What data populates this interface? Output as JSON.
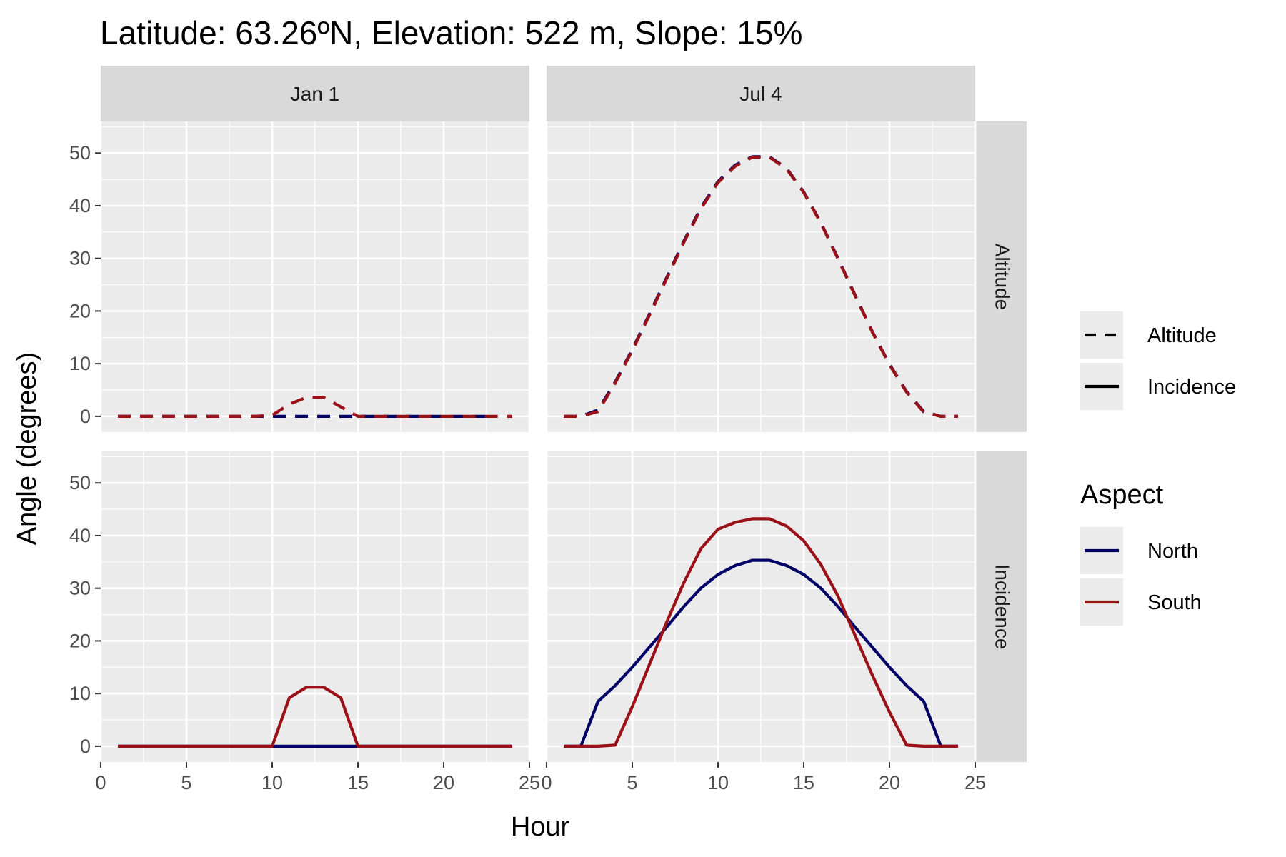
{
  "chart_data": {
    "type": "line",
    "title": "Latitude: 63.26ºN, Elevation: 522 m, Slope: 15%",
    "xlabel": "Hour",
    "ylabel": "Angle (degrees)",
    "xlim": [
      0,
      25
    ],
    "ylim": [
      0,
      50
    ],
    "x_ticks": [
      0,
      5,
      10,
      15,
      20,
      25
    ],
    "y_ticks": [
      0,
      10,
      20,
      30,
      40,
      50
    ],
    "x_tick_labels": [
      "0",
      "5",
      "10",
      "15",
      "20",
      "25"
    ],
    "x_tick_labels_right": [
      "0",
      "5",
      "10",
      "15",
      "20",
      "25"
    ],
    "y_tick_labels": [
      "0",
      "10",
      "20",
      "30",
      "40",
      "50"
    ],
    "grid": true,
    "columns": [
      "Jan 1",
      "Jul 4"
    ],
    "rows": [
      "Altitude",
      "Incidence"
    ],
    "legend": {
      "position": "right",
      "linetype_title": "",
      "linetypes": [
        {
          "label": "Altitude",
          "dash": "dashed"
        },
        {
          "label": "Incidence",
          "dash": "solid"
        }
      ],
      "color_title": "Aspect",
      "colors": [
        {
          "label": "North",
          "color": "#000066"
        },
        {
          "label": "South",
          "color": "#9b1118"
        }
      ]
    },
    "panels": [
      {
        "column": "Jan 1",
        "row": "Altitude",
        "series": [
          {
            "name": "North",
            "color": "#000066",
            "linetype": "dashed",
            "x": [
              1,
              2,
              3,
              4,
              5,
              6,
              7,
              8,
              9,
              10,
              11,
              12,
              13,
              14,
              15,
              16,
              17,
              18,
              19,
              20,
              21,
              22,
              23
            ],
            "y": [
              0,
              0,
              0,
              0,
              0,
              0,
              0,
              0,
              0,
              0,
              0,
              0,
              0,
              0,
              0,
              0,
              0,
              0,
              0,
              0,
              0,
              0,
              0
            ]
          },
          {
            "name": "South",
            "color": "#9b1118",
            "linetype": "dashed",
            "x": [
              1,
              2,
              3,
              4,
              5,
              6,
              7,
              8,
              9,
              10,
              11,
              12,
              13,
              14,
              15,
              16,
              17,
              18,
              19,
              20,
              21,
              22,
              23,
              24
            ],
            "y": [
              0,
              0,
              0,
              0,
              0,
              0,
              0,
              0,
              0,
              0.2,
              2.3,
              3.6,
              3.6,
              1.8,
              0,
              0,
              0,
              0,
              0,
              0,
              0,
              0,
              0,
              0
            ]
          }
        ]
      },
      {
        "column": "Jul 4",
        "row": "Altitude",
        "series": [
          {
            "name": "North",
            "color": "#000066",
            "linetype": "dashed",
            "x": [
              1,
              2,
              3,
              4,
              5,
              6,
              7,
              8,
              9,
              10,
              11,
              12,
              13,
              14,
              15,
              16,
              17,
              18,
              19,
              20,
              21,
              22,
              23,
              24
            ],
            "y": [
              0,
              0,
              1.2,
              6.5,
              12.7,
              19.4,
              26.3,
              33.2,
              39.6,
              44.6,
              47.7,
              49.3,
              49.3,
              47.1,
              42.6,
              36.8,
              30.0,
              23.0,
              16.1,
              9.9,
              4.7,
              0.9,
              0,
              0
            ]
          },
          {
            "name": "South",
            "color": "#9b1118",
            "linetype": "dashed",
            "x": [
              1,
              2,
              3,
              4,
              5,
              6,
              7,
              8,
              9,
              10,
              11,
              12,
              13,
              14,
              15,
              16,
              17,
              18,
              19,
              20,
              21,
              22,
              23,
              24
            ],
            "y": [
              0,
              0,
              0.9,
              6.3,
              12.5,
              19.2,
              26.1,
              33.0,
              39.4,
              44.4,
              47.5,
              49.2,
              49.2,
              47.0,
              42.5,
              36.7,
              29.9,
              22.9,
              16.0,
              9.8,
              4.6,
              0.8,
              0,
              0
            ]
          }
        ]
      },
      {
        "column": "Jan 1",
        "row": "Incidence",
        "series": [
          {
            "name": "North",
            "color": "#000066",
            "linetype": "solid",
            "x": [
              1,
              2,
              3,
              4,
              5,
              6,
              7,
              8,
              9,
              10,
              11,
              12,
              13,
              14,
              15,
              16,
              17,
              18,
              19,
              20,
              21,
              22,
              23,
              24
            ],
            "y": [
              0,
              0,
              0,
              0,
              0,
              0,
              0,
              0,
              0,
              0,
              0,
              0,
              0,
              0,
              0,
              0,
              0,
              0,
              0,
              0,
              0,
              0,
              0,
              0
            ]
          },
          {
            "name": "South",
            "color": "#9b1118",
            "linetype": "solid",
            "x": [
              1,
              2,
              3,
              4,
              5,
              6,
              7,
              8,
              9,
              10,
              11,
              12,
              13,
              14,
              15,
              16,
              17,
              18,
              19,
              20,
              21,
              22,
              23,
              24
            ],
            "y": [
              0,
              0,
              0,
              0,
              0,
              0,
              0,
              0,
              0,
              0,
              9.2,
              11.2,
              11.2,
              9.2,
              0,
              0,
              0,
              0,
              0,
              0,
              0,
              0,
              0,
              0
            ]
          }
        ]
      },
      {
        "column": "Jul 4",
        "row": "Incidence",
        "series": [
          {
            "name": "North",
            "color": "#000066",
            "linetype": "solid",
            "x": [
              1,
              2,
              3,
              4,
              5,
              6,
              7,
              8,
              9,
              10,
              11,
              12,
              13,
              14,
              15,
              16,
              17,
              18,
              19,
              20,
              21,
              22,
              23,
              24
            ],
            "y": [
              0,
              0,
              8.5,
              11.5,
              15.0,
              18.8,
              22.6,
              26.5,
              30.0,
              32.6,
              34.3,
              35.3,
              35.3,
              34.3,
              32.6,
              30.0,
              26.5,
              22.6,
              18.8,
              15.0,
              11.5,
              8.5,
              0,
              0
            ]
          },
          {
            "name": "South",
            "color": "#9b1118",
            "linetype": "solid",
            "x": [
              1,
              2,
              3,
              4,
              5,
              6,
              7,
              8,
              9,
              10,
              11,
              12,
              13,
              14,
              15,
              16,
              17,
              18,
              19,
              20,
              21,
              22,
              23,
              24
            ],
            "y": [
              0,
              0,
              0,
              0.2,
              7.5,
              15.5,
              23.5,
              31.0,
              37.5,
              41.2,
              42.5,
              43.2,
              43.2,
              41.8,
              39.0,
              34.5,
              28.5,
              21.0,
              13.5,
              6.5,
              0.2,
              0,
              0,
              0
            ]
          }
        ]
      }
    ]
  }
}
